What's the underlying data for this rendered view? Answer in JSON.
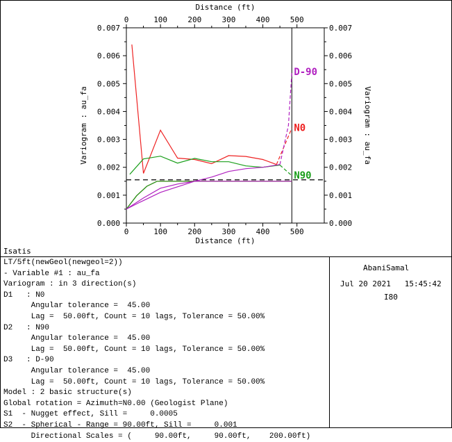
{
  "app": {
    "name": "Isatis"
  },
  "info": {
    "author": "AbaniSamal",
    "date": "Jul 20 2021",
    "time": "15:45:42",
    "code": "I80"
  },
  "params": [
    "LT/5ft(newGeol(newgeol=2))",
    "- Variable #1 : au_fa",
    "Variogram : in 3 direction(s)",
    "D1   : N0",
    "      Angular tolerance =  45.00",
    "      Lag =  50.00ft, Count = 10 lags, Tolerance = 50.00%",
    "D2   : N90",
    "      Angular tolerance =  45.00",
    "      Lag =  50.00ft, Count = 10 lags, Tolerance = 50.00%",
    "D3   : D-90",
    "      Angular tolerance =  45.00",
    "      Lag =  50.00ft, Count = 10 lags, Tolerance = 50.00%",
    "Model : 2 basic structure(s)",
    "Global rotation = Azimuth=N0.00 (Geologist Plane)",
    "S1  - Nugget effect, Sill =     0.0005",
    "S2  - Spherical - Range = 90.00ft, Sill =     0.001",
    "      Directional Scales = (     90.00ft,     90.00ft,    200.00ft)"
  ],
  "chart_data": {
    "type": "line",
    "xlabel": "Distance (ft)",
    "ylabel": "Variogram : au_fa",
    "xlim": [
      0,
      580
    ],
    "ylim": [
      0,
      0.007
    ],
    "xticks": [
      0,
      100,
      200,
      300,
      400,
      500
    ],
    "yticks": [
      "0.000",
      "0.001",
      "0.002",
      "0.003",
      "0.004",
      "0.005",
      "0.006",
      "0.007"
    ],
    "colors": {
      "N0": "#ee2222",
      "N90": "#1a9e1a",
      "D-90": "#b020c0",
      "sill": "#000000"
    },
    "series": [
      {
        "name": "N0",
        "experimental": {
          "x": [
            16,
            50,
            100,
            150,
            200,
            250,
            300,
            350,
            400,
            440
          ],
          "y": [
            0.0064,
            0.00178,
            0.00333,
            0.00233,
            0.00228,
            0.00213,
            0.00242,
            0.00239,
            0.00228,
            0.0021
          ]
        },
        "model_line": {
          "x": [
            440,
            485
          ],
          "y": [
            0.0021,
            0.0034
          ]
        }
      },
      {
        "name": "N90",
        "experimental": {
          "x": [
            10,
            50,
            100,
            150,
            200,
            250,
            300,
            350,
            400,
            450
          ],
          "y": [
            0.00175,
            0.0023,
            0.0024,
            0.00215,
            0.00232,
            0.0022,
            0.0022,
            0.00205,
            0.002,
            0.00208
          ]
        },
        "model_line": {
          "x": [
            450,
            485
          ],
          "y": [
            0.00208,
            0.0017
          ]
        }
      },
      {
        "name": "D-90",
        "experimental": {
          "x": [
            0,
            40,
            100,
            150,
            200,
            250,
            300,
            350,
            400,
            450
          ],
          "y": [
            0.0005,
            0.00075,
            0.0011,
            0.0013,
            0.0015,
            0.00165,
            0.00185,
            0.00195,
            0.002,
            0.0021
          ]
        },
        "model_line": {
          "x": [
            450,
            475,
            485
          ],
          "y": [
            0.0021,
            0.0035,
            0.0054
          ]
        }
      }
    ],
    "models": [
      {
        "name": "N0",
        "x": [
          0,
          30,
          60,
          90,
          485
        ],
        "y": [
          0.0005,
          0.00098,
          0.00132,
          0.0015,
          0.0015
        ]
      },
      {
        "name": "N90",
        "x": [
          0,
          30,
          60,
          90,
          485
        ],
        "y": [
          0.0005,
          0.00098,
          0.00132,
          0.0015,
          0.0015
        ]
      },
      {
        "name": "D-90",
        "x": [
          0,
          50,
          100,
          150,
          200,
          485
        ],
        "y": [
          0.0005,
          0.0009,
          0.00125,
          0.0014,
          0.0015,
          0.0015
        ]
      }
    ],
    "sill": 0.00155,
    "vertical_marker_x": 485
  }
}
